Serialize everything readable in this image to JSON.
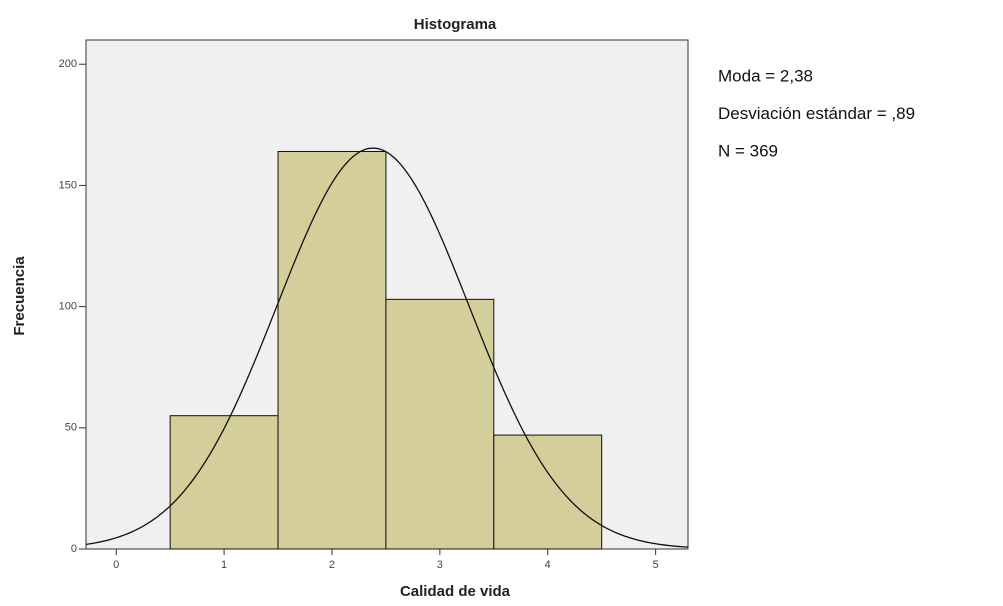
{
  "chart_data": {
    "type": "histogram",
    "title": "Histograma",
    "x_label": "Calidad de vida",
    "y_label": "Frecuencia",
    "bins": [
      0.5,
      1.5,
      2.5,
      3.5,
      4.5
    ],
    "values": [
      55,
      164,
      103,
      47
    ],
    "color": "#d4cf9a",
    "plot_background": "#f0f0f0",
    "xlim": [
      -0.28,
      5.3
    ],
    "xticks": [
      0,
      1,
      2,
      3,
      4,
      5
    ],
    "ylim": [
      0,
      210
    ],
    "yticks": [
      0,
      50,
      100,
      150,
      200
    ],
    "normal_curve": true,
    "stats": [
      {
        "text": "Moda = 2,38",
        "value": 2.38
      },
      {
        "text": "Desviación estándar = ,89",
        "value": 0.89
      },
      {
        "text": "N = 369",
        "value": 369
      }
    ]
  }
}
